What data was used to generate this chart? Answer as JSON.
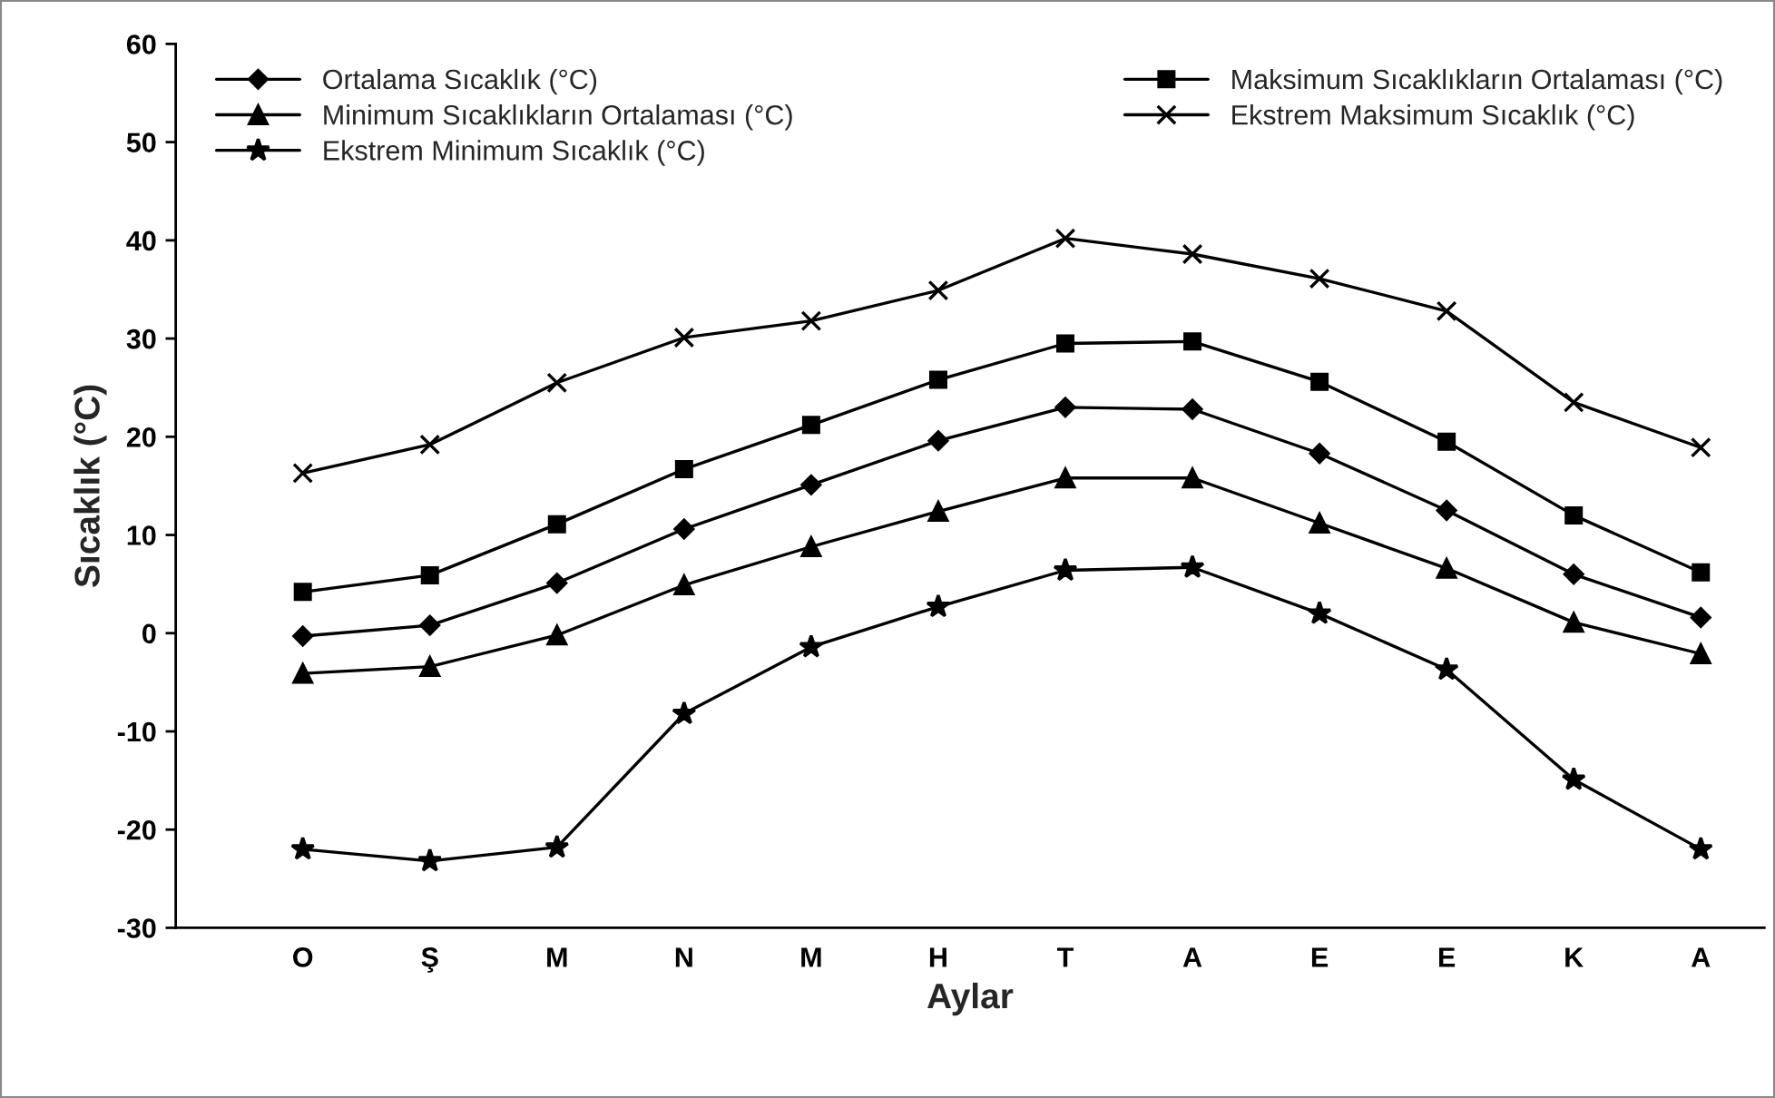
{
  "chart_data": {
    "type": "line",
    "xlabel": "Aylar",
    "ylabel": "Sıcaklık (°C)",
    "categories": [
      "O",
      "Ş",
      "M",
      "N",
      "M",
      "H",
      "T",
      "A",
      "E",
      "E",
      "K",
      "A"
    ],
    "ylim": [
      -30,
      60
    ],
    "yticks": [
      -30,
      -20,
      -10,
      0,
      10,
      20,
      30,
      40,
      50,
      60
    ],
    "grid": false,
    "legend": "top",
    "series": [
      {
        "name": "Ortalama Sıcaklık (°C)",
        "color": "#000000",
        "marker": "diamond",
        "values": [
          -0.3,
          0.8,
          5.1,
          10.6,
          15.1,
          19.6,
          23.0,
          22.8,
          18.3,
          12.5,
          6.0,
          1.6
        ]
      },
      {
        "name": "Maksimum Sıcaklıkların Ortalaması (°C)",
        "color": "#000000",
        "marker": "square",
        "values": [
          4.2,
          5.9,
          11.1,
          16.7,
          21.2,
          25.8,
          29.5,
          29.7,
          25.6,
          19.5,
          12.0,
          6.2
        ]
      },
      {
        "name": "Minimum Sıcaklıkların Ortalaması (°C)",
        "color": "#000000",
        "marker": "triangle",
        "values": [
          -4.1,
          -3.4,
          -0.2,
          4.9,
          8.8,
          12.4,
          15.8,
          15.8,
          11.2,
          6.6,
          1.1,
          -2.1
        ]
      },
      {
        "name": "Ekstrem Maksimum Sıcaklık (°C)",
        "color": "#000000",
        "marker": "cross",
        "values": [
          16.3,
          19.2,
          25.5,
          30.1,
          31.8,
          34.9,
          40.2,
          38.6,
          36.1,
          32.8,
          23.5,
          18.9
        ]
      },
      {
        "name": "Ekstrem Minimum Sıcaklık (°C)",
        "color": "#000000",
        "marker": "star",
        "values": [
          -22.0,
          -23.2,
          -21.8,
          -8.2,
          -1.4,
          2.7,
          6.4,
          6.7,
          2.0,
          -3.7,
          -14.9,
          -22.0
        ]
      }
    ]
  }
}
